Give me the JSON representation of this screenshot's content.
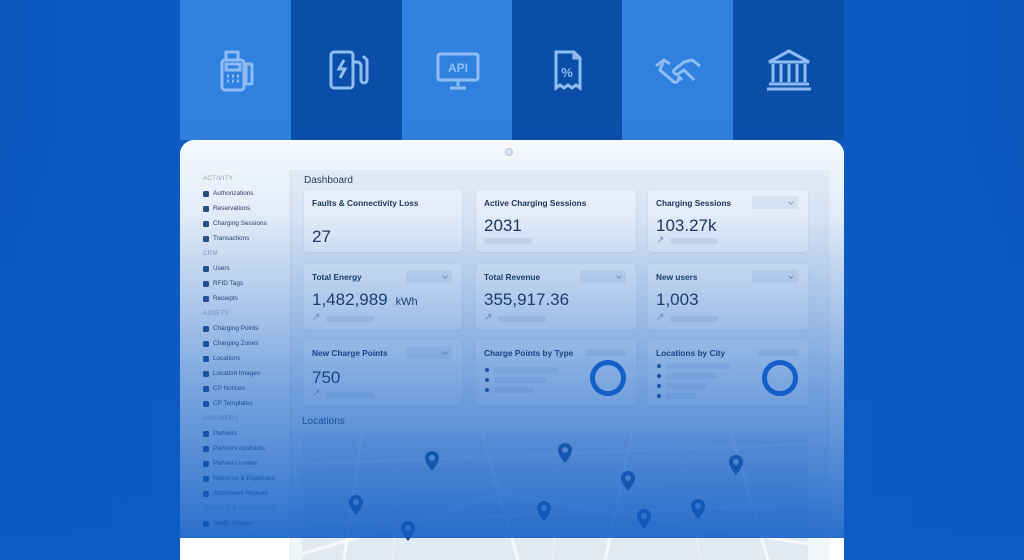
{
  "colors": {
    "tile_light": "#2f80df",
    "tile_dark": "#0a4ea8",
    "background": "#0d5bc4",
    "accent": "#1d63d0",
    "icon": "#8fbdf3"
  },
  "tiles": [
    {
      "icon": "payment-terminal-icon"
    },
    {
      "icon": "ev-charger-icon"
    },
    {
      "icon": "api-monitor-icon",
      "text": "API"
    },
    {
      "icon": "tax-receipt-icon",
      "text": "%"
    },
    {
      "icon": "handshake-icon"
    },
    {
      "icon": "bank-icon"
    }
  ],
  "sidebar": {
    "sections": [
      {
        "title": "ACTIVITY",
        "items": [
          {
            "label": "Authorizations",
            "icon": "lock-icon"
          },
          {
            "label": "Reservations",
            "icon": "calendar-icon"
          },
          {
            "label": "Charging Sessions",
            "icon": "bolt-icon"
          },
          {
            "label": "Transactions",
            "icon": "transfer-icon"
          }
        ]
      },
      {
        "title": "CRM",
        "items": [
          {
            "label": "Users",
            "icon": "users-icon"
          },
          {
            "label": "RFID Tags",
            "icon": "rfid-icon"
          },
          {
            "label": "Receipts",
            "icon": "receipt-icon"
          }
        ]
      },
      {
        "title": "ASSETS",
        "items": [
          {
            "label": "Charging Points",
            "icon": "charger-icon"
          },
          {
            "label": "Charging Zones",
            "icon": "pin-icon"
          },
          {
            "label": "Locations",
            "icon": "map-icon"
          },
          {
            "label": "Location Images",
            "icon": "image-icon"
          },
          {
            "label": "CP Notices",
            "icon": "bell-icon"
          },
          {
            "label": "CP Templates",
            "icon": "template-icon"
          }
        ]
      },
      {
        "title": "PARTNERS",
        "items": [
          {
            "label": "Partners",
            "icon": "partner-icon"
          },
          {
            "label": "Partners contracts",
            "icon": "contract-icon"
          },
          {
            "label": "Partners invites",
            "icon": "invite-icon"
          },
          {
            "label": "Revenue & Expenses",
            "icon": "revenue-icon"
          },
          {
            "label": "Settlement Reports",
            "icon": "report-icon"
          }
        ]
      },
      {
        "title": "TARIFFS & VOUCHERS",
        "items": [
          {
            "label": "Tariffs Groups",
            "icon": "tariff-icon"
          }
        ]
      }
    ]
  },
  "dashboard": {
    "title": "Dashboard",
    "cards": [
      {
        "label": "Faults & Connectivity Loss",
        "value": "27"
      },
      {
        "label": "Active Charging Sessions",
        "value": "2031"
      },
      {
        "label": "Charging Sessions",
        "value": "103.27k"
      },
      {
        "label": "Total Energy",
        "value": "1,482,989",
        "unit": "kWh"
      },
      {
        "label": "Total Revenue",
        "value": "355,917.36"
      },
      {
        "label": "New users",
        "value": "1,003"
      },
      {
        "label": "New Charge Points",
        "value": "750"
      },
      {
        "label": "Charge Points by Type"
      },
      {
        "label": "Locations by City"
      }
    ],
    "locations_title": "Locations"
  }
}
